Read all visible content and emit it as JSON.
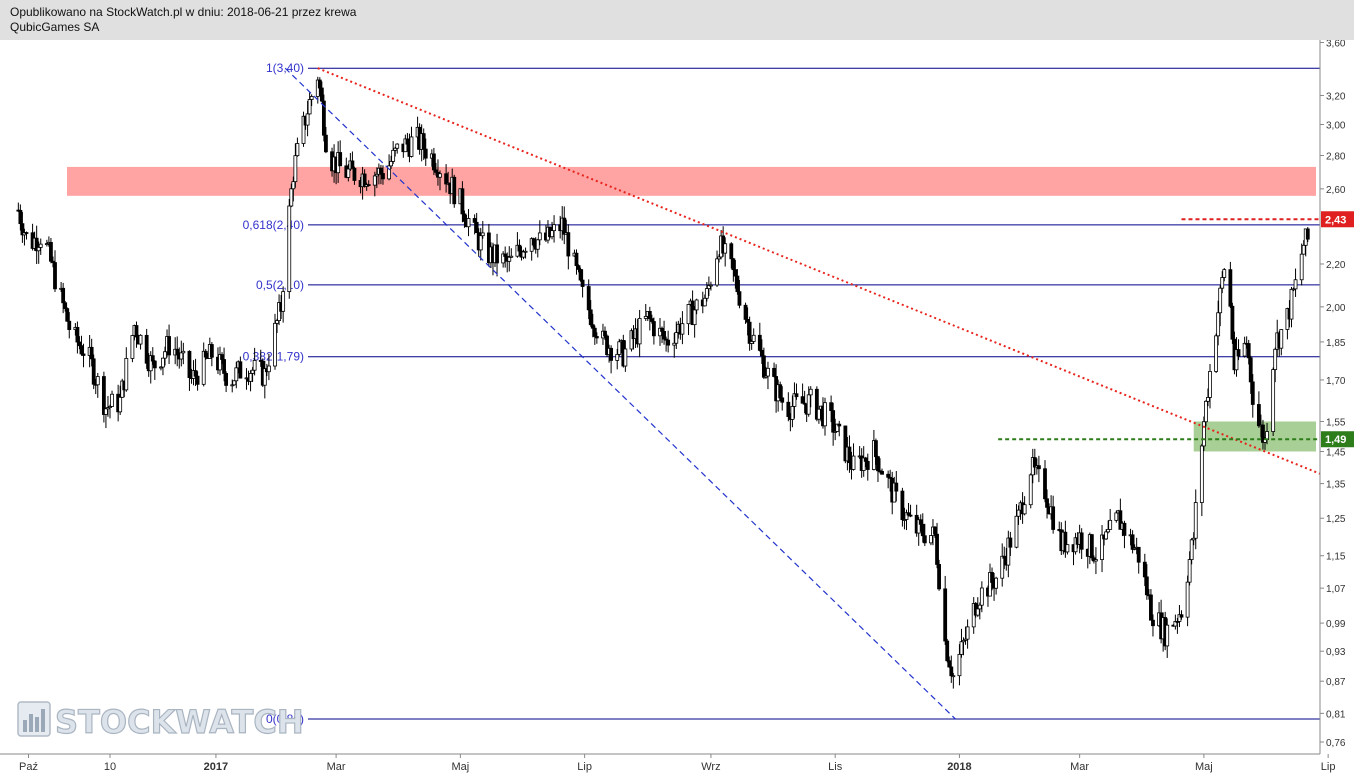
{
  "header": {
    "line1": "Opublikowano na StockWatch.pl w dniu: 2018-06-21 przez krewa",
    "line2": "QubicGames SA"
  },
  "watermark": {
    "text": "STOCKWATCH",
    "icon": "bar-chart-icon"
  },
  "colors": {
    "candle": "#000000",
    "resistance_zone": "#ff9999",
    "support_zone": "#9fca8a",
    "fib_lines": "#00008b",
    "fib_labels": "#3333cc",
    "downtrend": "#e8231c",
    "fib_diagonal": "#2233cc",
    "level_2_43": "#e02020",
    "level_1_49": "#2e7d1b"
  },
  "chart_data": {
    "type": "candlestick",
    "title": "",
    "xlabel": "",
    "ylabel": "",
    "x_range": [
      "2016-09-17",
      "2018-06-27"
    ],
    "ylim": [
      0.74,
      3.62
    ],
    "x_ticks": [
      {
        "date": "2016-10-01",
        "label": "Paź",
        "bold": false
      },
      {
        "date": "2016-11-10",
        "label": "10",
        "bold": false
      },
      {
        "date": "2017-01-01",
        "label": "2017",
        "bold": true
      },
      {
        "date": "2017-03-01",
        "label": "Mar",
        "bold": false
      },
      {
        "date": "2017-05-01",
        "label": "Maj",
        "bold": false
      },
      {
        "date": "2017-07-01",
        "label": "Lip",
        "bold": false
      },
      {
        "date": "2017-09-01",
        "label": "Wrz",
        "bold": false
      },
      {
        "date": "2017-11-01",
        "label": "Lis",
        "bold": false
      },
      {
        "date": "2018-01-01",
        "label": "2018",
        "bold": true
      },
      {
        "date": "2018-03-01",
        "label": "Mar",
        "bold": false
      },
      {
        "date": "2018-05-01",
        "label": "Maj",
        "bold": false
      },
      {
        "date": "2018-07-01",
        "label": "Lip",
        "bold": false
      }
    ],
    "y_ticks": [
      "3,60",
      "3,20",
      "3,00",
      "2,80",
      "2,60",
      "2,43",
      "2,20",
      "2,00",
      "1,85",
      "1,70",
      "1,55",
      "1,49",
      "1,45",
      "1,35",
      "1,25",
      "1,15",
      "1,07",
      "0,99",
      "0,93",
      "0,87",
      "0,81",
      "0,76"
    ],
    "price_path": [
      [
        "2016-09-26",
        2.48
      ],
      [
        "2016-10-01",
        2.3
      ],
      [
        "2016-10-08",
        2.35
      ],
      [
        "2016-10-15",
        2.1
      ],
      [
        "2016-10-22",
        1.88
      ],
      [
        "2016-10-30",
        1.8
      ],
      [
        "2016-11-08",
        1.6
      ],
      [
        "2016-11-15",
        1.62
      ],
      [
        "2016-11-22",
        1.92
      ],
      [
        "2016-12-01",
        1.75
      ],
      [
        "2016-12-10",
        1.85
      ],
      [
        "2016-12-20",
        1.7
      ],
      [
        "2016-12-30",
        1.8
      ],
      [
        "2017-01-08",
        1.7
      ],
      [
        "2017-01-15",
        1.75
      ],
      [
        "2017-01-25",
        1.72
      ],
      [
        "2017-02-02",
        2.0
      ],
      [
        "2017-02-08",
        2.7
      ],
      [
        "2017-02-15",
        3.1
      ],
      [
        "2017-02-20",
        3.35
      ],
      [
        "2017-02-25",
        2.8
      ],
      [
        "2017-03-05",
        2.7
      ],
      [
        "2017-03-15",
        2.68
      ],
      [
        "2017-03-25",
        2.7
      ],
      [
        "2017-04-01",
        2.85
      ],
      [
        "2017-04-10",
        2.9
      ],
      [
        "2017-04-20",
        2.75
      ],
      [
        "2017-04-30",
        2.55
      ],
      [
        "2017-05-08",
        2.35
      ],
      [
        "2017-05-15",
        2.25
      ],
      [
        "2017-05-25",
        2.2
      ],
      [
        "2017-06-05",
        2.35
      ],
      [
        "2017-06-10",
        2.3
      ],
      [
        "2017-06-20",
        2.4
      ],
      [
        "2017-06-30",
        2.05
      ],
      [
        "2017-07-10",
        1.85
      ],
      [
        "2017-07-20",
        1.8
      ],
      [
        "2017-08-01",
        1.95
      ],
      [
        "2017-08-10",
        1.85
      ],
      [
        "2017-08-20",
        1.95
      ],
      [
        "2017-08-30",
        2.05
      ],
      [
        "2017-09-05",
        2.3
      ],
      [
        "2017-09-12",
        2.15
      ],
      [
        "2017-09-20",
        1.9
      ],
      [
        "2017-09-30",
        1.7
      ],
      [
        "2017-10-08",
        1.6
      ],
      [
        "2017-10-20",
        1.62
      ],
      [
        "2017-10-30",
        1.55
      ],
      [
        "2017-11-10",
        1.4
      ],
      [
        "2017-11-20",
        1.45
      ],
      [
        "2017-12-01",
        1.3
      ],
      [
        "2017-12-10",
        1.22
      ],
      [
        "2017-12-20",
        1.2
      ],
      [
        "2017-12-25",
        0.95
      ],
      [
        "2017-12-29",
        0.88
      ],
      [
        "2018-01-05",
        0.97
      ],
      [
        "2018-01-10",
        1.05
      ],
      [
        "2018-01-20",
        1.1
      ],
      [
        "2018-01-30",
        1.25
      ],
      [
        "2018-02-05",
        1.4
      ],
      [
        "2018-02-12",
        1.33
      ],
      [
        "2018-02-20",
        1.18
      ],
      [
        "2018-03-01",
        1.2
      ],
      [
        "2018-03-10",
        1.15
      ],
      [
        "2018-03-20",
        1.25
      ],
      [
        "2018-03-30",
        1.15
      ],
      [
        "2018-04-05",
        1.02
      ],
      [
        "2018-04-12",
        0.97
      ],
      [
        "2018-04-20",
        1.02
      ],
      [
        "2018-04-26",
        1.2
      ],
      [
        "2018-05-01",
        1.55
      ],
      [
        "2018-05-06",
        1.85
      ],
      [
        "2018-05-12",
        2.25
      ],
      [
        "2018-05-16",
        1.75
      ],
      [
        "2018-05-22",
        1.85
      ],
      [
        "2018-05-26",
        1.58
      ],
      [
        "2018-05-31",
        1.48
      ],
      [
        "2018-06-05",
        1.85
      ],
      [
        "2018-06-10",
        1.92
      ],
      [
        "2018-06-15",
        2.1
      ],
      [
        "2018-06-19",
        2.3
      ],
      [
        "2018-06-21",
        2.32
      ]
    ],
    "horizontal_lines": [
      {
        "price": 3.4,
        "label": "1(3,40)"
      },
      {
        "price": 2.4,
        "label": "0,618(2,40)"
      },
      {
        "price": 2.1,
        "label": "0,5(2,10)"
      },
      {
        "price": 1.79,
        "label": "0,382(1,79)"
      },
      {
        "price": 0.8,
        "label": "0(0,80)"
      }
    ],
    "zones": [
      {
        "name": "resistance-zone",
        "price_from": 2.56,
        "price_to": 2.73,
        "date_from": "2016-09-17",
        "date_to": "2018-06-27"
      },
      {
        "name": "support-zone",
        "price_from": 1.45,
        "price_to": 1.55,
        "date_from": "2018-04-26",
        "date_to": "2018-06-27"
      }
    ],
    "price_levels": [
      {
        "price": 2.43,
        "label": "2,43",
        "from": "2018-04-20"
      },
      {
        "price": 1.49,
        "label": "1,49",
        "from": "2018-01-20"
      }
    ],
    "trendlines": [
      {
        "name": "downtrend-line",
        "style": "dotted",
        "from": [
          "2017-02-20",
          3.4
        ],
        "to": [
          "2018-06-27",
          1.38
        ]
      },
      {
        "name": "fib-diagonal-line",
        "style": "dashed",
        "from": [
          "2017-02-04",
          3.4
        ],
        "to": [
          "2017-12-30",
          0.8
        ]
      }
    ]
  }
}
